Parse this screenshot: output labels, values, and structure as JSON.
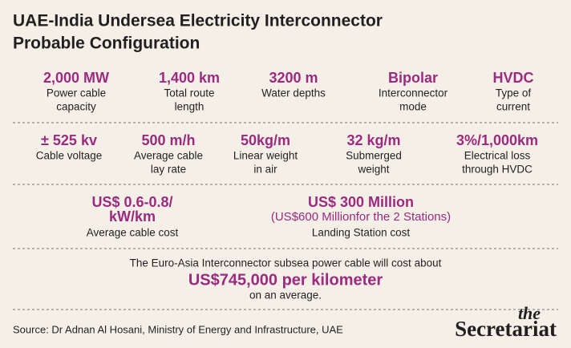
{
  "title": [
    "UAE-India Undersea Electricity Interconnector",
    "Probable Configuration"
  ],
  "rows": [
    [
      {
        "value": "2,000 MW",
        "label": [
          "Power cable",
          "capacity"
        ]
      },
      {
        "value": "1,400 km",
        "label": [
          "Total route",
          "length"
        ]
      },
      {
        "value": "3200 m",
        "label": [
          "Water depths"
        ]
      },
      {
        "value": "Bipolar",
        "label": [
          "Interconnector",
          "mode"
        ]
      },
      {
        "value": "HVDC",
        "label": [
          "Type of",
          "current"
        ]
      }
    ],
    [
      {
        "value": "± 525 kv",
        "label": [
          "Cable voltage"
        ]
      },
      {
        "value": "500 m/h",
        "label": [
          "Average cable",
          "lay rate"
        ]
      },
      {
        "value": "50kg/m",
        "label": [
          "Linear weight",
          "in air"
        ]
      },
      {
        "value": "32 kg/m",
        "label": [
          "Submerged",
          "weight"
        ]
      },
      {
        "value": "3%/1,000km",
        "label": [
          "Electrical loss",
          "through HVDC"
        ]
      }
    ]
  ],
  "costs": [
    {
      "value": [
        "US$ 0.6-0.8/",
        "kW/km"
      ],
      "label": "Average cable cost"
    },
    {
      "value": [
        "US$ 300 Million",
        "(US$600 Millionfor the 2 Stations)"
      ],
      "label": "Landing Station cost"
    }
  ],
  "summary": [
    "The Euro-Asia Interconnector subsea power cable will cost about",
    "US$745,000 per kilometer",
    "on an average."
  ],
  "source": "Source: Dr Adnan Al Hosani, Ministry of Energy and Infrastructure, UAE",
  "logo": [
    "the",
    "Secretariat"
  ]
}
